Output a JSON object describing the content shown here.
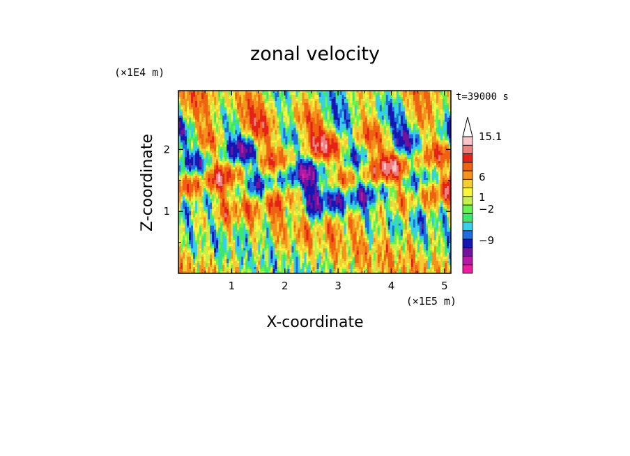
{
  "chart_data": {
    "type": "heatmap",
    "title": "zonal velocity",
    "xlabel": "X-coordinate",
    "ylabel": "Z-coordinate",
    "x_unit": "(×1E5 m)",
    "y_unit": "(×1E4 m)",
    "time_label": "t=39000 s",
    "xlim": [
      0,
      5.12
    ],
    "ylim": [
      0,
      2.95
    ],
    "x_ticks": [
      1,
      2,
      3,
      4,
      5
    ],
    "x_tick_labels": [
      "1",
      "2",
      "3",
      "4",
      "5"
    ],
    "y_ticks": [
      1,
      2
    ],
    "y_tick_labels": [
      "1",
      "2"
    ],
    "colorbar": {
      "levels": [
        -15,
        -12,
        -9,
        -6,
        -4,
        -2,
        -1,
        0,
        1,
        2,
        4,
        6,
        9,
        12,
        15.1
      ],
      "colors": [
        "#ee1ca0",
        "#b31aa6",
        "#70149c",
        "#1616b3",
        "#1e6ee0",
        "#38d0e8",
        "#3ce869",
        "#68f24e",
        "#c5ef4a",
        "#f8f53c",
        "#f5cd33",
        "#f4931c",
        "#ee6212",
        "#e42218",
        "#ee8080",
        "#f8c6c6"
      ],
      "labeled_values": [
        "15.1",
        "6",
        "1",
        "−2",
        "−9"
      ],
      "extend": "max"
    }
  }
}
